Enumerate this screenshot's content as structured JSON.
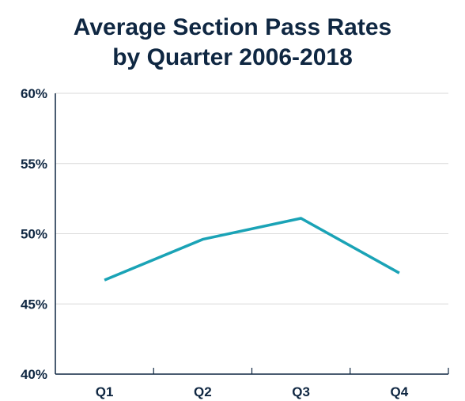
{
  "chart_data": {
    "type": "line",
    "title_line1": "Average Section Pass Rates",
    "title_line2": "by Quarter 2006-2018",
    "xlabel": "",
    "ylabel": "",
    "categories": [
      "Q1",
      "Q2",
      "Q3",
      "Q4"
    ],
    "series": [
      {
        "values": [
          46.7,
          49.6,
          51.1,
          47.2
        ],
        "color": "#1aa3b6"
      }
    ],
    "ylim": [
      40,
      60
    ],
    "yticks": [
      40,
      45,
      50,
      55,
      60
    ],
    "ytick_labels": [
      "40%",
      "45%",
      "50%",
      "55%",
      "60%"
    ],
    "grid": true,
    "legend": "none"
  },
  "colors": {
    "title": "#0f2742",
    "axis": "#0f2742",
    "grid": "#d9d9d9",
    "line": "#1aa3b6"
  }
}
